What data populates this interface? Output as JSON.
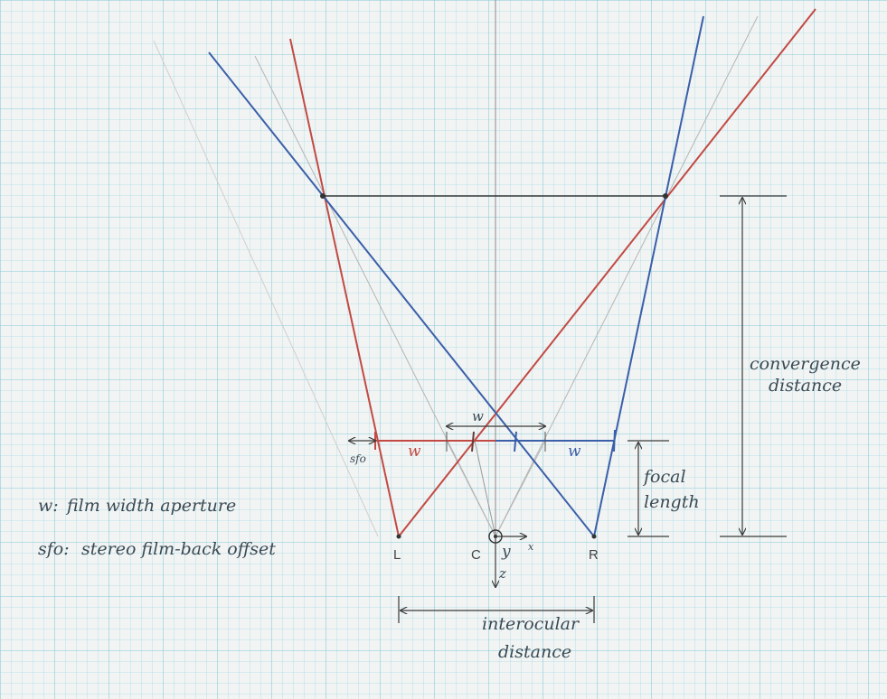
{
  "labels": {
    "left": "L",
    "right": "R",
    "center": "C",
    "axis_y": "y",
    "axis_z": "z",
    "axis_x": "x",
    "w_red": "w",
    "w_blue": "w",
    "w_top": "w",
    "sfo": "sfo",
    "focal_line1": "focal",
    "focal_line2": "length",
    "convergence_line1": "convergence",
    "convergence_line2": "distance",
    "interocular_line1": "interocular",
    "interocular_line2": "distance"
  },
  "legend": {
    "w_key": "w:",
    "w_text": "film width aperture",
    "sfo_key": "sfo:",
    "sfo_text": "stereo film-back offset"
  },
  "colors": {
    "paper": "#f1f4f3",
    "grid": "#9fd6e2",
    "red": "#c24a44",
    "blue": "#3b5fa8",
    "pencil": "#4a4a4a",
    "faint": "#b8b8b8"
  }
}
